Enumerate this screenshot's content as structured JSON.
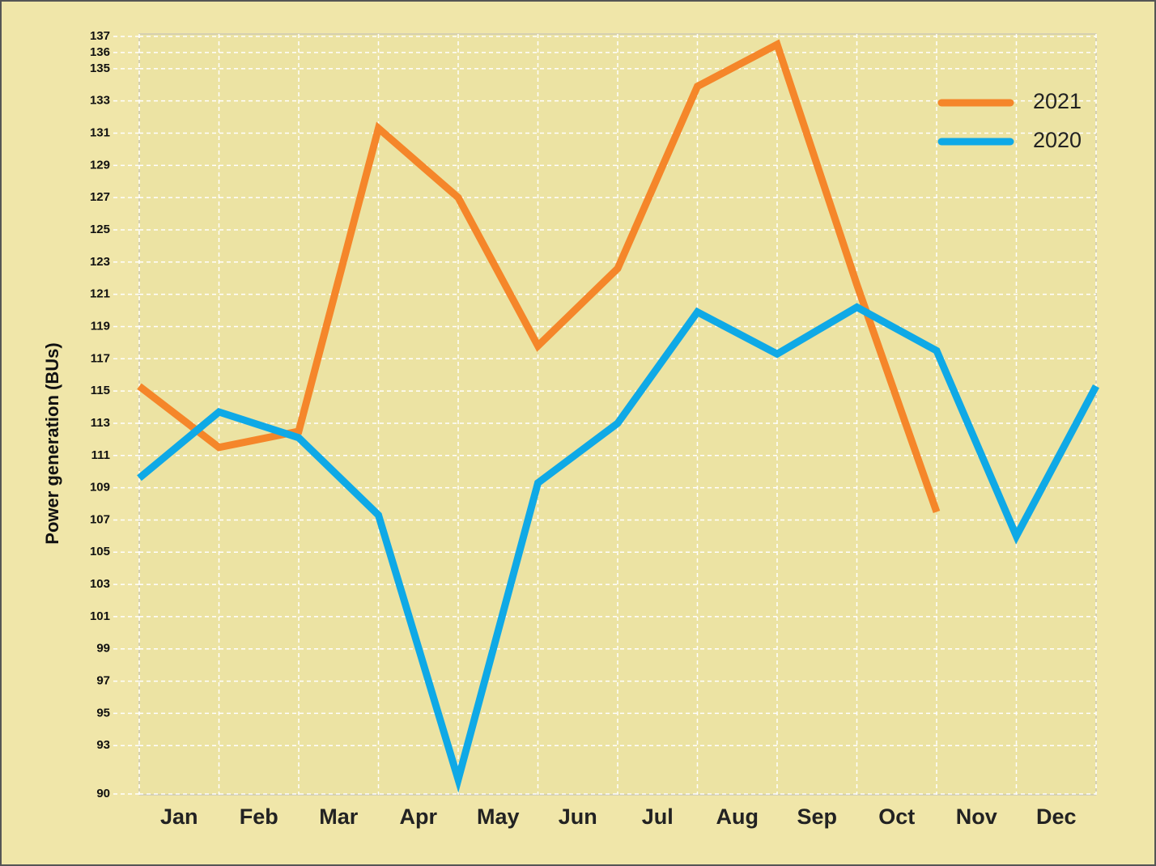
{
  "chart_data": {
    "type": "line",
    "y_label": "Power generation (BUs)",
    "categories": [
      "Jan",
      "Feb",
      "Mar",
      "Apr",
      "May",
      "Jun",
      "Jul",
      "Aug",
      "Sep",
      "Oct",
      "Nov",
      "Dec",
      null
    ],
    "series": [
      {
        "name": "2021",
        "color": "#f5862a",
        "values": [
          115.3,
          111.5,
          112.5,
          131.3,
          127.0,
          117.8,
          122.6,
          133.9,
          136.5,
          121.6,
          107.5,
          null,
          null
        ]
      },
      {
        "name": "2020",
        "color": "#0fa9e6",
        "values": [
          109.6,
          113.7,
          112.1,
          107.3,
          90.9,
          109.3,
          113.0,
          119.9,
          117.3,
          120.2,
          117.5,
          106.0,
          115.3
        ]
      }
    ],
    "ylim": [
      90,
      137
    ],
    "yticks": [
      90,
      93,
      95,
      97,
      99,
      101,
      103,
      105,
      107,
      109,
      111,
      113,
      115,
      117,
      119,
      121,
      123,
      125,
      127,
      129,
      131,
      133,
      135,
      136,
      137
    ],
    "grid": true,
    "legend": "top-right"
  }
}
